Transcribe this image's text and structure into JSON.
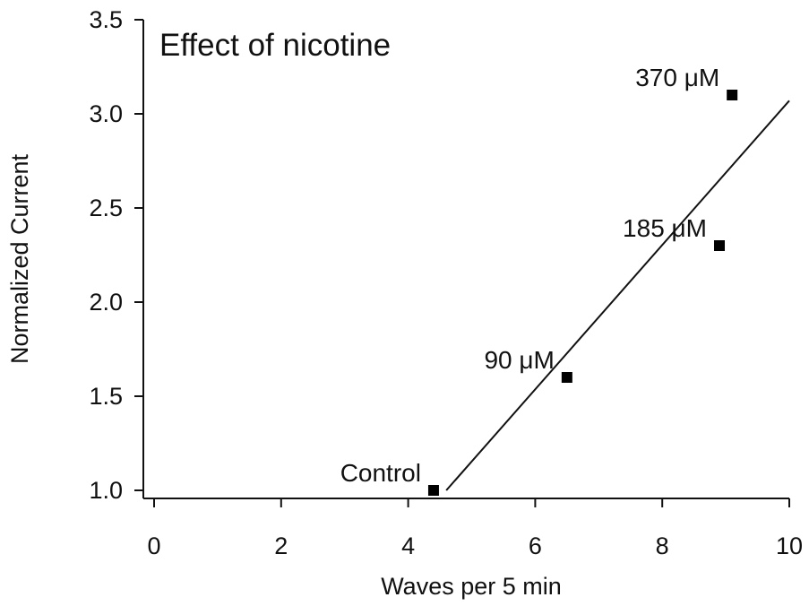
{
  "chart_data": {
    "type": "scatter",
    "title": "Effect of nicotine",
    "xlabel": "Waves per 5 min",
    "ylabel": "Normalized Current",
    "xlim": [
      0,
      10
    ],
    "ylim": [
      1.0,
      3.5
    ],
    "x_ticks": [
      0,
      2,
      4,
      6,
      8,
      10
    ],
    "x_tick_labels": [
      "0",
      "2",
      "4",
      "6",
      "8",
      "10"
    ],
    "y_ticks": [
      1.0,
      1.5,
      2.0,
      2.5,
      3.0,
      3.5
    ],
    "y_tick_labels": [
      "1.0",
      "1.5",
      "2.0",
      "2.5",
      "3.0",
      "3.5"
    ],
    "grid": false,
    "points": [
      {
        "label": "Control",
        "x": 4.4,
        "y": 1.0
      },
      {
        "label": "90 μM",
        "x": 6.5,
        "y": 1.6
      },
      {
        "label": "185 μM",
        "x": 8.9,
        "y": 2.3
      },
      {
        "label": "370 μM",
        "x": 9.1,
        "y": 3.1
      }
    ],
    "fit_line": {
      "x": [
        4.6,
        10.0
      ],
      "y": [
        1.0,
        3.07
      ]
    },
    "marker_color": "#000000"
  }
}
